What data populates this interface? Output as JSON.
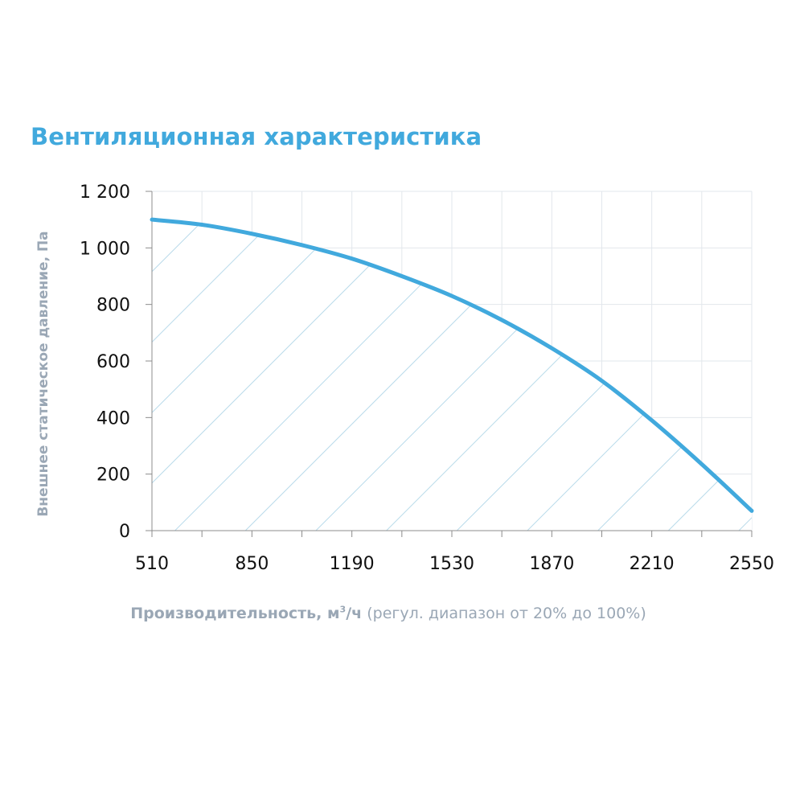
{
  "chart_data": {
    "type": "area",
    "title": "Вентиляционная характеристика",
    "xlabel_main": "Производительность, м",
    "xlabel_sup": "3",
    "xlabel_unit": "/ч",
    "xlabel_note": " (регул. диапазон от 20% до 100%)",
    "ylabel": "Внешнее статическое давление, Па",
    "x_ticks": [
      "510",
      "850",
      "1190",
      "1530",
      "1870",
      "2210",
      "2550"
    ],
    "y_ticks": [
      "0",
      "200",
      "400",
      "600",
      "800",
      "1 000",
      "1 200"
    ],
    "xlim": [
      510,
      2550
    ],
    "ylim": [
      0,
      1200
    ],
    "grid": true,
    "fill_pattern": "diagonal-hatch",
    "colors": {
      "curve": "#41a9dd",
      "hatch": "#b8daea",
      "grid": "#e2e7ec",
      "axis": "#8c8c8c"
    },
    "series": [
      {
        "x": [
          510,
          680,
          850,
          1020,
          1190,
          1360,
          1530,
          1700,
          1870,
          2040,
          2210,
          2380,
          2550
        ],
        "y": [
          1100,
          1082,
          1050,
          1010,
          962,
          900,
          830,
          745,
          645,
          530,
          390,
          235,
          70
        ]
      }
    ]
  }
}
